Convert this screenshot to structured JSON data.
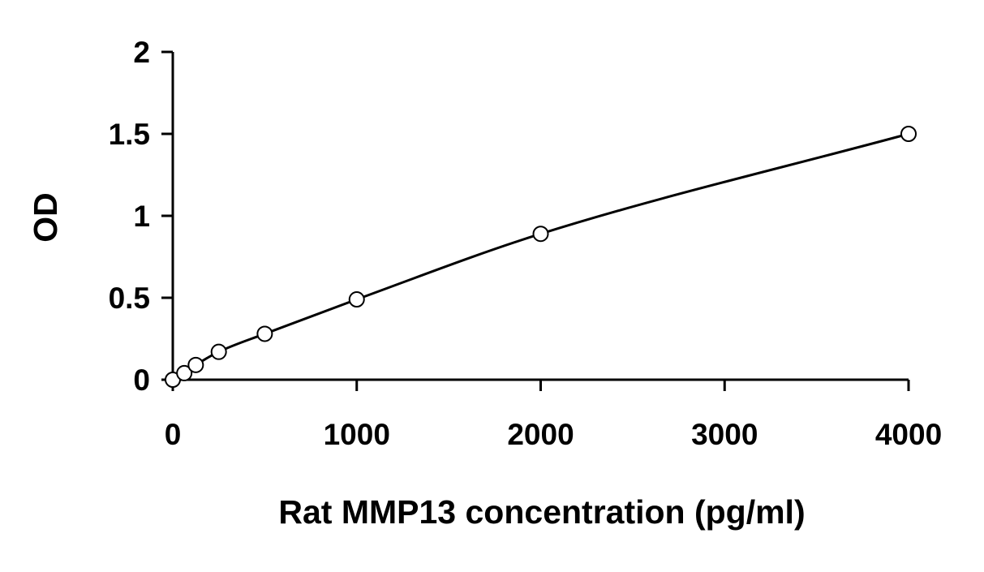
{
  "chart_data": {
    "type": "scatter",
    "title": "",
    "xlabel": "Rat MMP13 concentration (pg/ml)",
    "ylabel": "OD",
    "xlim": [
      0,
      4000
    ],
    "ylim": [
      0,
      2
    ],
    "xticks": [
      0,
      1000,
      2000,
      3000,
      4000
    ],
    "xtick_labels": [
      "0",
      "1000",
      "2000",
      "3000",
      "4000"
    ],
    "yticks": [
      0,
      0.5,
      1,
      1.5,
      2
    ],
    "ytick_labels": [
      "0",
      "0.5",
      "1",
      "1.5",
      "2"
    ],
    "grid": false,
    "legend": "none",
    "series": [
      {
        "marker": "open-circle",
        "fit_line": "smooth",
        "points": [
          {
            "x": 0,
            "y": 0.0
          },
          {
            "x": 62.5,
            "y": 0.04
          },
          {
            "x": 125,
            "y": 0.09
          },
          {
            "x": 250,
            "y": 0.17
          },
          {
            "x": 500,
            "y": 0.28
          },
          {
            "x": 1000,
            "y": 0.49
          },
          {
            "x": 2000,
            "y": 0.89
          },
          {
            "x": 4000,
            "y": 1.5
          }
        ]
      }
    ],
    "colors": {
      "axis": "#000000",
      "line": "#000000",
      "marker_fill": "#ffffff",
      "marker_stroke": "#000000"
    }
  }
}
